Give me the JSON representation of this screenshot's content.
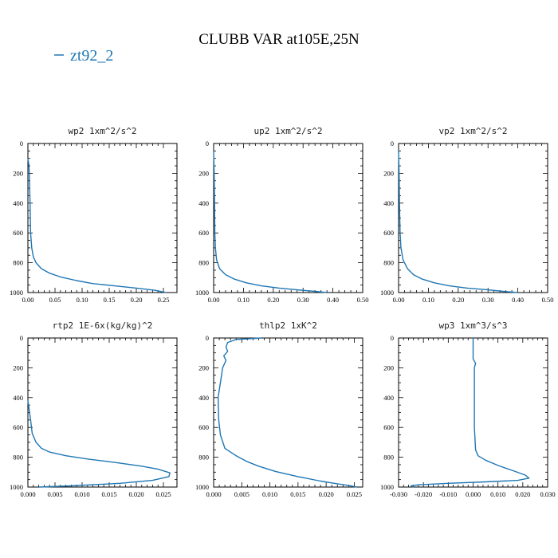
{
  "figure": {
    "title": "CLUBB VAR at105E,25N",
    "legend": {
      "label": "zt92_2",
      "color": "#1f77b4"
    }
  },
  "chart_data": [
    {
      "type": "line",
      "title": "wp2  1xm^2/s^2",
      "xlim": [
        0,
        0.275
      ],
      "ylim": [
        1000,
        0
      ],
      "xticks": [
        0.0,
        0.05,
        0.1,
        0.15,
        0.2,
        0.25
      ],
      "xtick_labels": [
        "0.00",
        "0.05",
        "0.10",
        "0.15",
        "0.20",
        "0.25"
      ],
      "yticks": [
        0,
        200,
        400,
        600,
        800,
        1000
      ],
      "ytick_labels": [
        "0",
        "200",
        "400",
        "600",
        "800",
        "1000"
      ],
      "series": [
        {
          "name": "zt92_2",
          "x": [
            0.0,
            0.002,
            0.003,
            0.004,
            0.005,
            0.007,
            0.01,
            0.015,
            0.025,
            0.04,
            0.06,
            0.09,
            0.12,
            0.16,
            0.2,
            0.235,
            0.255
          ],
          "y": [
            100,
            150,
            250,
            400,
            600,
            700,
            760,
            800,
            840,
            870,
            895,
            920,
            940,
            955,
            970,
            985,
            1000
          ]
        }
      ]
    },
    {
      "type": "line",
      "title": "up2  1xm^2/s^2",
      "xlim": [
        0,
        0.5
      ],
      "ylim": [
        1000,
        0
      ],
      "xticks": [
        0.0,
        0.1,
        0.2,
        0.3,
        0.4,
        0.5
      ],
      "xtick_labels": [
        "0.00",
        "0.10",
        "0.20",
        "0.30",
        "0.40",
        "0.50"
      ],
      "yticks": [
        0,
        200,
        400,
        600,
        800,
        1000
      ],
      "ytick_labels": [
        "0",
        "200",
        "400",
        "600",
        "800",
        "1000"
      ],
      "series": [
        {
          "name": "zt92_2",
          "x": [
            0.0,
            0.002,
            0.003,
            0.004,
            0.006,
            0.01,
            0.02,
            0.04,
            0.07,
            0.11,
            0.16,
            0.22,
            0.28,
            0.34,
            0.38
          ],
          "y": [
            50,
            200,
            400,
            600,
            700,
            780,
            840,
            880,
            910,
            935,
            955,
            970,
            982,
            992,
            1000
          ]
        }
      ]
    },
    {
      "type": "line",
      "title": "vp2  1xm^2/s^2",
      "xlim": [
        0,
        0.5
      ],
      "ylim": [
        1000,
        0
      ],
      "xticks": [
        0.0,
        0.1,
        0.2,
        0.3,
        0.4,
        0.5
      ],
      "xtick_labels": [
        "0.00",
        "0.10",
        "0.20",
        "0.30",
        "0.40",
        "0.50"
      ],
      "yticks": [
        0,
        200,
        400,
        600,
        800,
        1000
      ],
      "ytick_labels": [
        "0",
        "200",
        "400",
        "600",
        "800",
        "1000"
      ],
      "series": [
        {
          "name": "zt92_2",
          "x": [
            0.0,
            0.002,
            0.003,
            0.005,
            0.008,
            0.015,
            0.03,
            0.05,
            0.08,
            0.12,
            0.17,
            0.23,
            0.3,
            0.35,
            0.4
          ],
          "y": [
            50,
            200,
            400,
            600,
            700,
            780,
            840,
            880,
            910,
            935,
            955,
            970,
            982,
            992,
            1000
          ]
        }
      ]
    },
    {
      "type": "line",
      "title": "rtp2  1E-6x(kg/kg)^2",
      "xlim": [
        0,
        0.0275
      ],
      "ylim": [
        1000,
        0
      ],
      "xticks": [
        0.0,
        0.005,
        0.01,
        0.015,
        0.02,
        0.025
      ],
      "xtick_labels": [
        "0.000",
        "0.005",
        "0.010",
        "0.015",
        "0.020",
        "0.025"
      ],
      "yticks": [
        0,
        200,
        400,
        600,
        800,
        1000
      ],
      "ytick_labels": [
        "0",
        "200",
        "400",
        "600",
        "800",
        "1000"
      ],
      "series": [
        {
          "name": "zt92_2",
          "x": [
            0.0,
            0.0005,
            0.0008,
            0.0015,
            0.0025,
            0.004,
            0.007,
            0.011,
            0.016,
            0.021,
            0.024,
            0.0262,
            0.026,
            0.023,
            0.017,
            0.008,
            0.002
          ],
          "y": [
            420,
            550,
            640,
            700,
            740,
            765,
            790,
            812,
            835,
            860,
            880,
            905,
            930,
            955,
            975,
            992,
            1000
          ]
        }
      ]
    },
    {
      "type": "line",
      "title": "thlp2  1xK^2",
      "xlim": [
        0,
        0.0265
      ],
      "ylim": [
        1000,
        0
      ],
      "xticks": [
        0.0,
        0.005,
        0.01,
        0.015,
        0.02,
        0.025
      ],
      "xtick_labels": [
        "0.000",
        "0.005",
        "0.010",
        "0.015",
        "0.020",
        "0.025"
      ],
      "yticks": [
        0,
        200,
        400,
        600,
        800,
        1000
      ],
      "ytick_labels": [
        "0",
        "200",
        "400",
        "600",
        "800",
        "1000"
      ],
      "series": [
        {
          "name": "zt92_2",
          "x": [
            0.0085,
            0.004,
            0.0025,
            0.0022,
            0.0025,
            0.0018,
            0.0022,
            0.0016,
            0.0012,
            0.0008,
            0.0009,
            0.0012,
            0.002,
            0.004,
            0.006,
            0.008,
            0.011,
            0.015,
            0.019,
            0.022,
            0.024,
            0.0255
          ],
          "y": [
            0,
            10,
            30,
            60,
            90,
            120,
            150,
            200,
            300,
            400,
            550,
            650,
            740,
            790,
            830,
            860,
            895,
            930,
            960,
            978,
            990,
            1000
          ]
        }
      ]
    },
    {
      "type": "line",
      "title": "wp3  1xm^3/s^3",
      "xlim": [
        -0.03,
        0.03
      ],
      "ylim": [
        1000,
        0
      ],
      "xticks": [
        -0.03,
        -0.02,
        -0.01,
        0.0,
        0.01,
        0.02,
        0.03
      ],
      "xtick_labels": [
        "-0.030",
        "-0.020",
        "-0.010",
        "0.000",
        "0.010",
        "0.020",
        "0.030"
      ],
      "yticks": [
        0,
        200,
        400,
        600,
        800,
        1000
      ],
      "ytick_labels": [
        "0",
        "200",
        "400",
        "600",
        "800",
        "1000"
      ],
      "series": [
        {
          "name": "zt92_2",
          "x": [
            0.0,
            0.0,
            0.001,
            0.0005,
            0.0005,
            0.0005,
            0.001,
            0.002,
            0.005,
            0.01,
            0.016,
            0.021,
            0.0225,
            0.018,
            0.005,
            -0.01,
            -0.022,
            -0.025,
            -0.024
          ],
          "y": [
            0,
            140,
            170,
            200,
            400,
            600,
            750,
            790,
            820,
            855,
            890,
            920,
            940,
            955,
            965,
            975,
            985,
            992,
            1000
          ]
        }
      ]
    }
  ]
}
